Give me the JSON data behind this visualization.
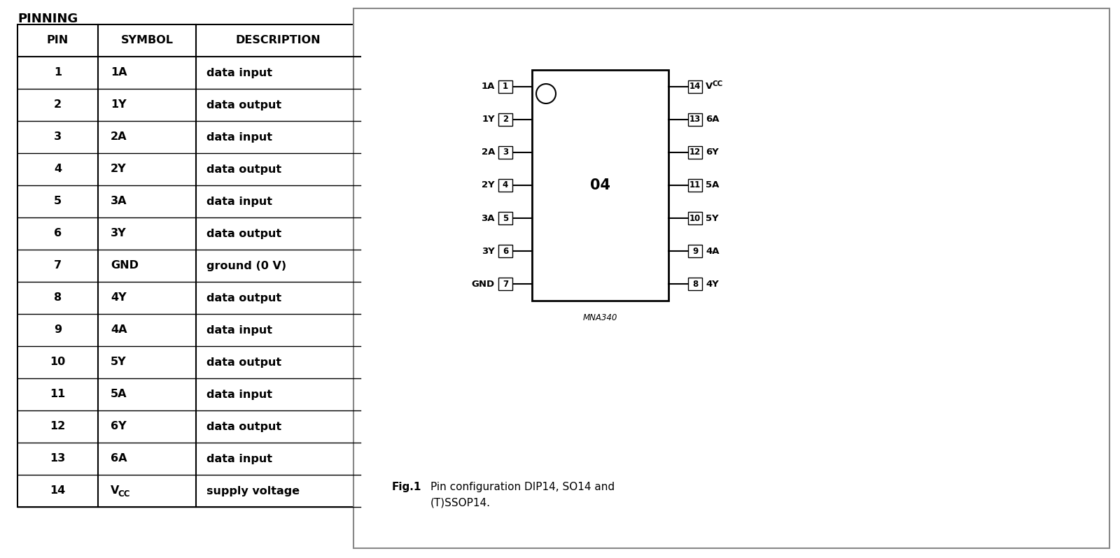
{
  "title": "PINNING",
  "background_color": "#ffffff",
  "table_header": [
    "PIN",
    "SYMBOL",
    "DESCRIPTION"
  ],
  "table_rows": [
    [
      "1",
      "1A",
      "data input"
    ],
    [
      "2",
      "1Y",
      "data output"
    ],
    [
      "3",
      "2A",
      "data input"
    ],
    [
      "4",
      "2Y",
      "data output"
    ],
    [
      "5",
      "3A",
      "data input"
    ],
    [
      "6",
      "3Y",
      "data output"
    ],
    [
      "7",
      "GND",
      "ground (0 V)"
    ],
    [
      "8",
      "4Y",
      "data output"
    ],
    [
      "9",
      "4A",
      "data input"
    ],
    [
      "10",
      "5Y",
      "data output"
    ],
    [
      "11",
      "5A",
      "data input"
    ],
    [
      "12",
      "6Y",
      "data output"
    ],
    [
      "13",
      "6A",
      "data input"
    ],
    [
      "14",
      "VCC",
      "supply voltage"
    ]
  ],
  "left_pins": [
    {
      "num": "1",
      "label": "1A"
    },
    {
      "num": "2",
      "label": "1Y"
    },
    {
      "num": "3",
      "label": "2A"
    },
    {
      "num": "4",
      "label": "2Y"
    },
    {
      "num": "5",
      "label": "3A"
    },
    {
      "num": "6",
      "label": "3Y"
    },
    {
      "num": "7",
      "label": "GND"
    }
  ],
  "right_pins": [
    {
      "num": "14",
      "label": "VCC"
    },
    {
      "num": "13",
      "label": "6A"
    },
    {
      "num": "12",
      "label": "6Y"
    },
    {
      "num": "11",
      "label": "5A"
    },
    {
      "num": "10",
      "label": "5Y"
    },
    {
      "num": "9",
      "label": "4A"
    },
    {
      "num": "8",
      "label": "4Y"
    }
  ],
  "ic_label": "04",
  "mna_label": "MNA340",
  "fig_caption_bold": "Fig.1",
  "fig_caption_text": "  Pin configuration DIP14, SO14 and\n        (T)SSOP14."
}
